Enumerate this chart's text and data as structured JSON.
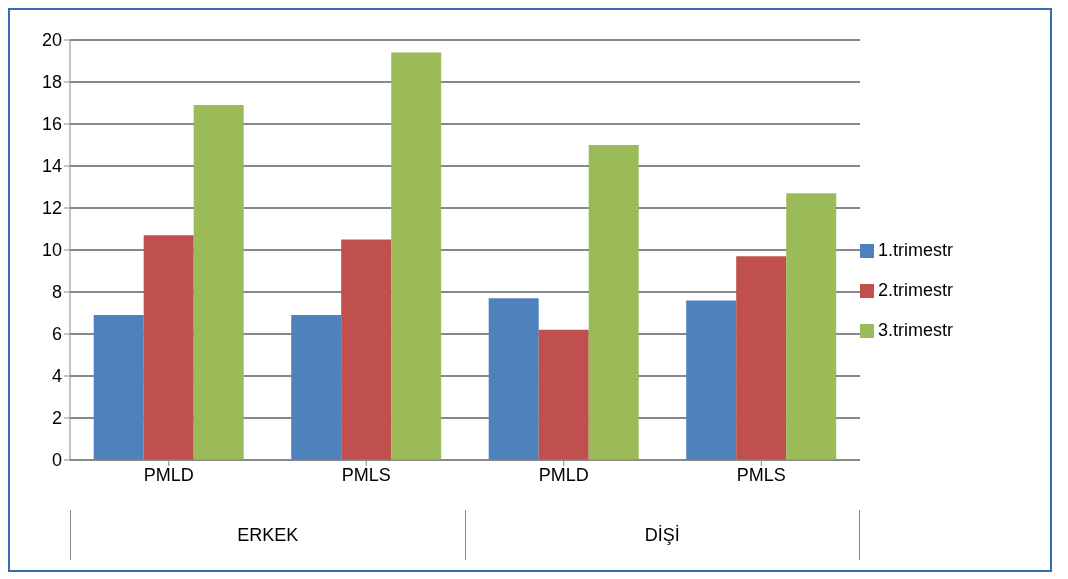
{
  "chart_data": {
    "type": "bar",
    "categories": [
      "PMLD",
      "PMLS",
      "PMLD",
      "PMLS"
    ],
    "series": [
      {
        "name": "1.trimestr",
        "color": "#4f81bd",
        "values": [
          6.9,
          6.9,
          7.7,
          7.6
        ]
      },
      {
        "name": "2.trimestr",
        "color": "#c0504d",
        "values": [
          10.7,
          10.5,
          6.2,
          9.7
        ]
      },
      {
        "name": "3.trimestr",
        "color": "#9bbb59",
        "values": [
          16.9,
          19.4,
          15.0,
          12.7
        ]
      }
    ],
    "ylim": [
      0,
      20
    ],
    "yticks": [
      0,
      2,
      4,
      6,
      8,
      10,
      12,
      14,
      16,
      18,
      20
    ],
    "grid": "y",
    "legend": "right",
    "annotations": [
      "ERKEK",
      "DİŞİ"
    ]
  }
}
